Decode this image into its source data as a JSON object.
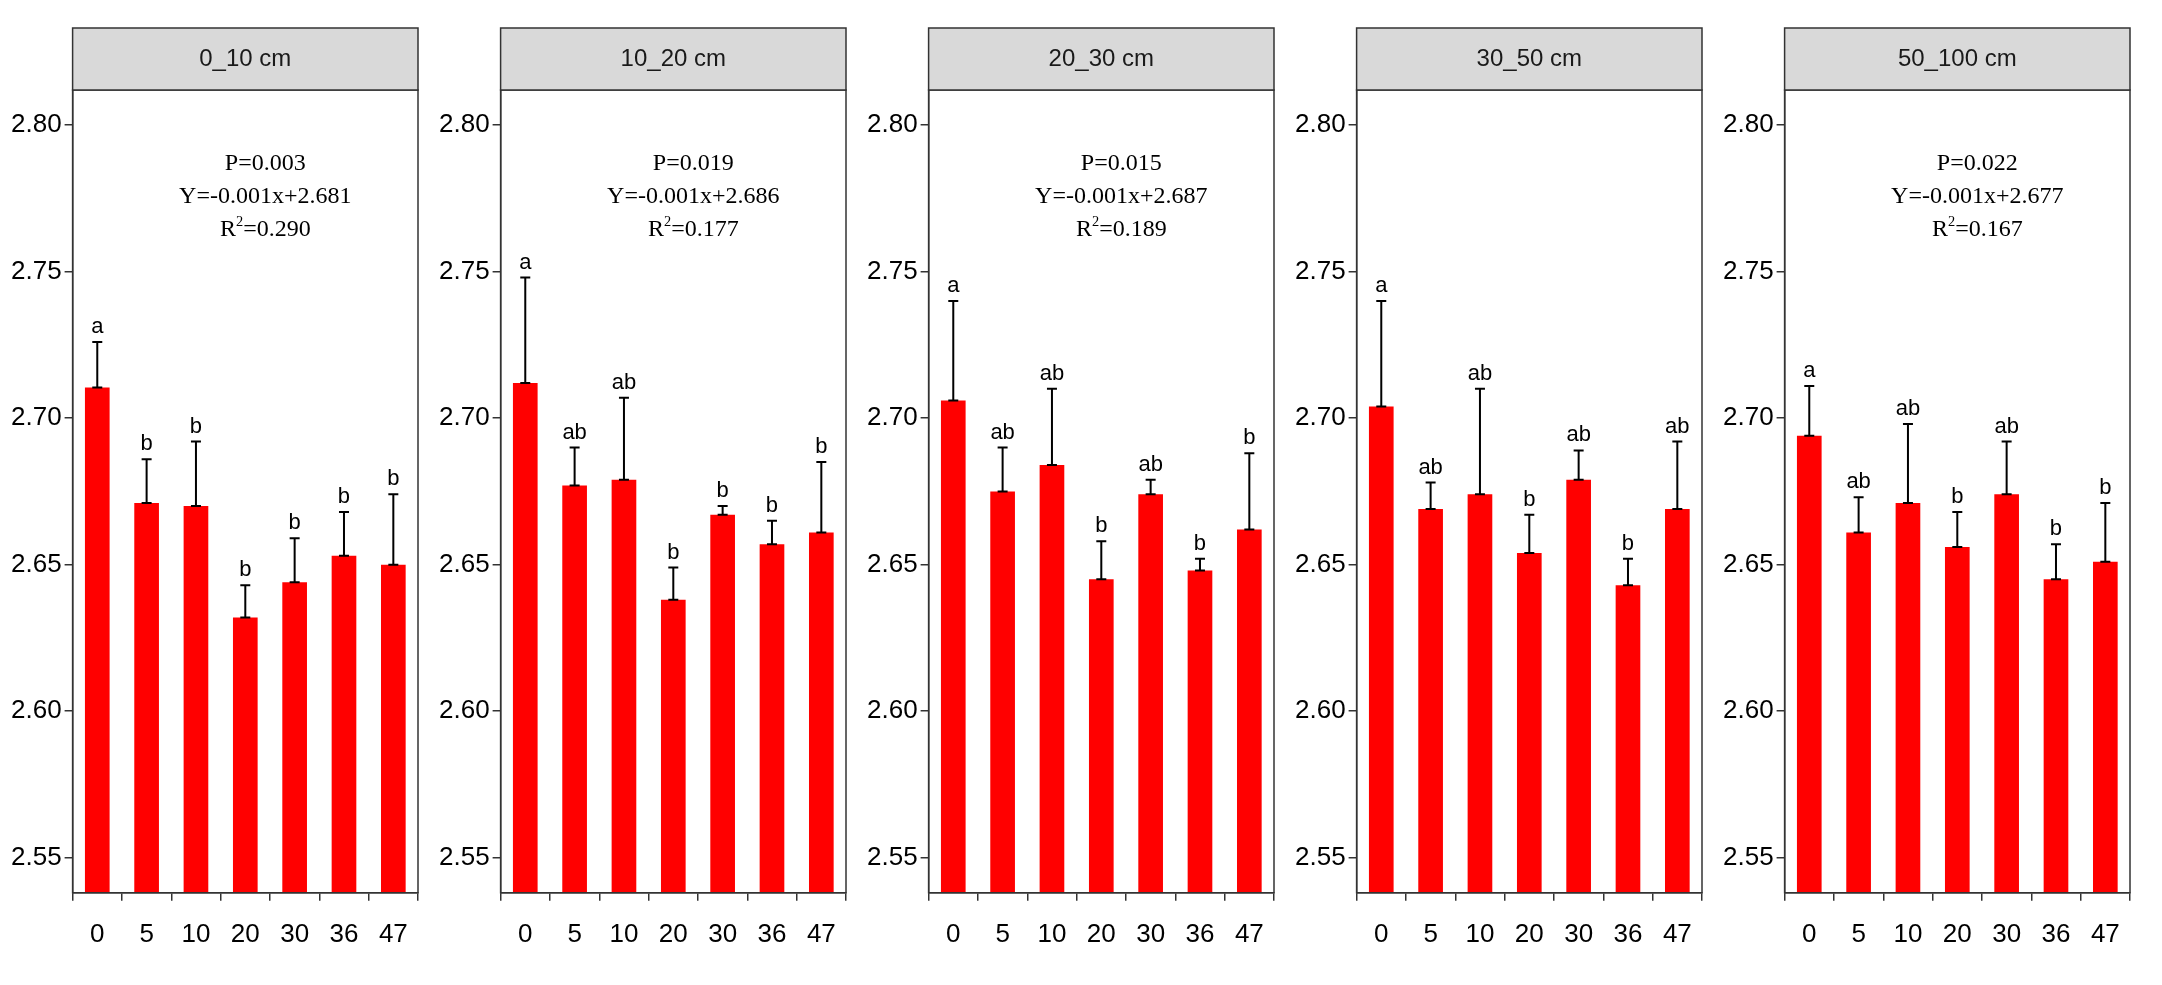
{
  "chart_data": [
    {
      "type": "bar",
      "title": "0_10 cm",
      "categories": [
        "0",
        "5",
        "10",
        "20",
        "30",
        "36",
        "47"
      ],
      "color": "#ff0000",
      "values": [
        2.7105,
        2.671,
        2.67,
        2.632,
        2.644,
        2.653,
        2.65
      ],
      "errors": [
        [
          2.7105,
          2.726
        ],
        [
          2.671,
          2.686
        ],
        [
          2.67,
          2.692
        ],
        [
          2.632,
          2.643
        ],
        [
          2.644,
          2.659
        ],
        [
          2.653,
          2.668
        ],
        [
          2.65,
          2.674
        ]
      ],
      "annotations": [
        "P=0.003",
        "Y=-0.001x+2.681",
        "R$^{2}$=0.290",
        {
          "text": "a",
          "x": "0",
          "y": 2.726
        },
        {
          "text": "b",
          "x": "5",
          "y": 2.686
        },
        {
          "text": "b",
          "x": "10",
          "y": 2.692
        },
        {
          "text": "b",
          "x": "20",
          "y": 2.643
        },
        {
          "text": "b",
          "x": "30",
          "y": 2.659
        },
        {
          "text": "b",
          "x": "36",
          "y": 2.668
        },
        {
          "text": "b",
          "x": "47",
          "y": 2.674
        }
      ],
      "ylim": [
        2.538,
        2.812
      ],
      "yticks": [
        2.55,
        {
          "value": 2.6,
          "label": "2.60"
        },
        2.65,
        {
          "value": 2.7,
          "label": "2.70"
        },
        2.75,
        {
          "value": 2.8,
          "label": "2.80"
        }
      ]
    },
    {
      "type": "bar",
      "title": "10_20 cm",
      "categories": [
        "0",
        "5",
        "10",
        "20",
        "30",
        "36",
        "47"
      ],
      "color": "#ff0000",
      "values": [
        2.712,
        2.677,
        2.679,
        2.638,
        2.667,
        2.657,
        2.661
      ],
      "errors": [
        [
          2.712,
          2.748
        ],
        [
          2.677,
          2.69
        ],
        [
          2.679,
          2.707
        ],
        [
          2.638,
          2.649
        ],
        [
          2.667,
          2.67
        ],
        [
          2.657,
          2.665
        ],
        [
          2.661,
          2.685
        ]
      ],
      "annotations": [
        "P=0.019",
        "Y=-0.001x+2.686",
        "R$^{2}$=0.177",
        {
          "text": "a",
          "x": "0",
          "y": 2.748
        },
        {
          "text": "ab",
          "x": "5",
          "y": 2.69
        },
        {
          "text": "ab",
          "x": "10",
          "y": 2.707
        },
        {
          "text": "b",
          "x": "20",
          "y": 2.649
        },
        {
          "text": "b",
          "x": "30",
          "y": 2.67
        },
        {
          "text": "b",
          "x": "36",
          "y": 2.665
        },
        {
          "text": "b",
          "x": "47",
          "y": 2.685
        }
      ],
      "ylim": [
        2.538,
        2.812
      ],
      "yticks": [
        2.55,
        {
          "value": 2.6,
          "label": "2.60"
        },
        2.65,
        {
          "value": 2.7,
          "label": "2.70"
        },
        2.75,
        {
          "value": 2.8,
          "label": "2.80"
        }
      ]
    },
    {
      "type": "bar",
      "title": "20_30 cm",
      "categories": [
        "0",
        "5",
        "10",
        "20",
        "30",
        "36",
        "47"
      ],
      "color": "#ff0000",
      "values": [
        2.706,
        2.675,
        2.684,
        2.645,
        2.674,
        2.648,
        2.662
      ],
      "errors": [
        [
          2.706,
          2.74
        ],
        [
          2.675,
          2.69
        ],
        [
          2.684,
          2.71
        ],
        [
          2.645,
          2.658
        ],
        [
          2.674,
          2.679
        ],
        [
          2.648,
          2.652
        ],
        [
          2.662,
          2.688
        ]
      ],
      "annotations": [
        "P=0.015",
        "Y=-0.001x+2.687",
        "R$^{2}$=0.189",
        {
          "text": "a",
          "x": "0",
          "y": 2.74
        },
        {
          "text": "ab",
          "x": "5",
          "y": 2.69
        },
        {
          "text": "ab",
          "x": "10",
          "y": 2.71
        },
        {
          "text": "b",
          "x": "20",
          "y": 2.658
        },
        {
          "text": "ab",
          "x": "30",
          "y": 2.679
        },
        {
          "text": "b",
          "x": "36",
          "y": 2.652
        },
        {
          "text": "b",
          "x": "47",
          "y": 2.688
        }
      ],
      "ylim": [
        2.538,
        2.812
      ],
      "yticks": [
        2.55,
        {
          "value": 2.6,
          "label": "2.60"
        },
        2.65,
        {
          "value": 2.7,
          "label": "2.70"
        },
        2.75,
        {
          "value": 2.8,
          "label": "2.80"
        }
      ]
    },
    {
      "type": "bar",
      "title": "30_50 cm",
      "categories": [
        "0",
        "5",
        "10",
        "20",
        "30",
        "36",
        "47"
      ],
      "color": "#ff0000",
      "values": [
        2.704,
        2.669,
        2.674,
        2.654,
        2.679,
        2.643,
        2.669
      ],
      "errors": [
        [
          2.704,
          2.74
        ],
        [
          2.669,
          2.678
        ],
        [
          2.674,
          2.71
        ],
        [
          2.654,
          2.667
        ],
        [
          2.679,
          2.689
        ],
        [
          2.643,
          2.652
        ],
        [
          2.669,
          2.692
        ]
      ],
      "annotations": [
        {
          "text": "a",
          "x": "0",
          "y": 2.74
        },
        {
          "text": "ab",
          "x": "5",
          "y": 2.678
        },
        {
          "text": "ab",
          "x": "10",
          "y": 2.71
        },
        {
          "text": "b",
          "x": "20",
          "y": 2.667
        },
        {
          "text": "ab",
          "x": "30",
          "y": 2.689
        },
        {
          "text": "b",
          "x": "36",
          "y": 2.652
        },
        {
          "text": "ab",
          "x": "47",
          "y": 2.692
        }
      ],
      "ylim": [
        2.538,
        2.812
      ],
      "yticks": [
        2.55,
        {
          "value": 2.6,
          "label": "2.60"
        },
        2.65,
        {
          "value": 2.7,
          "label": "2.70"
        },
        2.75,
        {
          "value": 2.8,
          "label": "2.80"
        }
      ]
    },
    {
      "type": "bar",
      "title": "50_100 cm",
      "categories": [
        "0",
        "5",
        "10",
        "20",
        "30",
        "36",
        "47"
      ],
      "color": "#ff0000",
      "values": [
        2.694,
        2.661,
        2.671,
        2.656,
        2.674,
        2.645,
        2.651
      ],
      "errors": [
        [
          2.694,
          2.711
        ],
        [
          2.661,
          2.673
        ],
        [
          2.671,
          2.698
        ],
        [
          2.656,
          2.668
        ],
        [
          2.674,
          2.692
        ],
        [
          2.645,
          2.657
        ],
        [
          2.651,
          2.671
        ]
      ],
      "annotations": [
        "P=0.022",
        "Y=-0.001x+2.677",
        "R$^{2}$=0.167",
        {
          "text": "a",
          "x": "0",
          "y": 2.711
        },
        {
          "text": "ab",
          "x": "5",
          "y": 2.673
        },
        {
          "text": "ab",
          "x": "10",
          "y": 2.698
        },
        {
          "text": "b",
          "x": "20",
          "y": 2.668
        },
        {
          "text": "ab",
          "x": "30",
          "y": 2.692
        },
        {
          "text": "b",
          "x": "36",
          "y": 2.657
        },
        {
          "text": "b",
          "x": "47",
          "y": 2.671
        }
      ],
      "ylim": [
        2.538,
        2.812
      ],
      "yticks": [
        2.55,
        {
          "value": 2.6,
          "label": "2.60"
        },
        2.65,
        {
          "value": 2.7,
          "label": "2.70"
        },
        2.75,
        {
          "value": 2.8,
          "label": "2.80"
        }
      ]
    }
  ]
}
